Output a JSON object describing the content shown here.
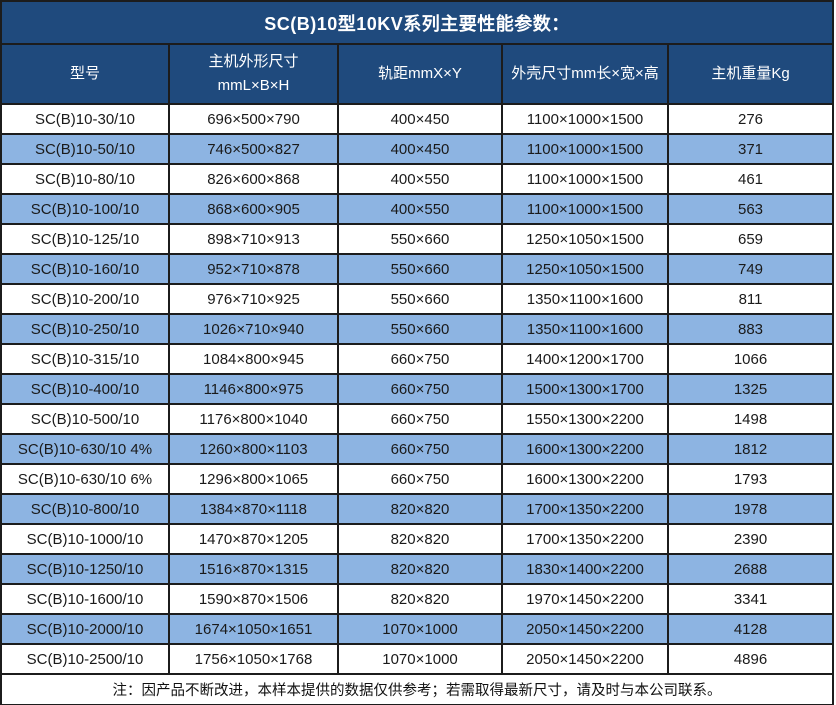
{
  "title": "SC(B)10型10KV系列主要性能参数：",
  "colors": {
    "header_bg": "#1f4a7d",
    "row_alt_bg": "#8db4e2",
    "border": "#1c1c1c",
    "header_text": "#ffffff",
    "body_text": "#1a1a1a"
  },
  "table": {
    "columns": [
      {
        "label": "型号"
      },
      {
        "label": "主机外形尺寸",
        "sub": "mmL×B×H"
      },
      {
        "label": "轨距mmX×Y"
      },
      {
        "label": "外壳尺寸mm长×宽×高"
      },
      {
        "label": "主机重量Kg"
      }
    ],
    "column_keys": [
      "model",
      "unit-dimensions",
      "rail-gauge",
      "shell-dimensions",
      "weight"
    ],
    "rows": [
      [
        "SC(B)10-30/10",
        "696×500×790",
        "400×450",
        "1100×1000×1500",
        "276"
      ],
      [
        "SC(B)10-50/10",
        "746×500×827",
        "400×450",
        "1100×1000×1500",
        "371"
      ],
      [
        "SC(B)10-80/10",
        "826×600×868",
        "400×550",
        "1100×1000×1500",
        "461"
      ],
      [
        "SC(B)10-100/10",
        "868×600×905",
        "400×550",
        "1100×1000×1500",
        "563"
      ],
      [
        "SC(B)10-125/10",
        "898×710×913",
        "550×660",
        "1250×1050×1500",
        "659"
      ],
      [
        "SC(B)10-160/10",
        "952×710×878",
        "550×660",
        "1250×1050×1500",
        "749"
      ],
      [
        "SC(B)10-200/10",
        "976×710×925",
        "550×660",
        "1350×1100×1600",
        "811"
      ],
      [
        "SC(B)10-250/10",
        "1026×710×940",
        "550×660",
        "1350×1100×1600",
        "883"
      ],
      [
        "SC(B)10-315/10",
        "1084×800×945",
        "660×750",
        "1400×1200×1700",
        "1066"
      ],
      [
        "SC(B)10-400/10",
        "1146×800×975",
        "660×750",
        "1500×1300×1700",
        "1325"
      ],
      [
        "SC(B)10-500/10",
        "1176×800×1040",
        "660×750",
        "1550×1300×2200",
        "1498"
      ],
      [
        "SC(B)10-630/10 4%",
        "1260×800×1103",
        "660×750",
        "1600×1300×2200",
        "1812"
      ],
      [
        "SC(B)10-630/10 6%",
        "1296×800×1065",
        "660×750",
        "1600×1300×2200",
        "1793"
      ],
      [
        "SC(B)10-800/10",
        "1384×870×1118",
        "820×820",
        "1700×1350×2200",
        "1978"
      ],
      [
        "SC(B)10-1000/10",
        "1470×870×1205",
        "820×820",
        "1700×1350×2200",
        "2390"
      ],
      [
        "SC(B)10-1250/10",
        "1516×870×1315",
        "820×820",
        "1830×1400×2200",
        "2688"
      ],
      [
        "SC(B)10-1600/10",
        "1590×870×1506",
        "820×820",
        "1970×1450×2200",
        "3341"
      ],
      [
        "SC(B)10-2000/10",
        "1674×1050×1651",
        "1070×1000",
        "2050×1450×2200",
        "4128"
      ],
      [
        "SC(B)10-2500/10",
        "1756×1050×1768",
        "1070×1000",
        "2050×1450×2200",
        "4896"
      ]
    ],
    "note": "注：因产品不断改进，本样本提供的数据仅供参考；若需取得最新尺寸，请及时与本公司联系。"
  }
}
